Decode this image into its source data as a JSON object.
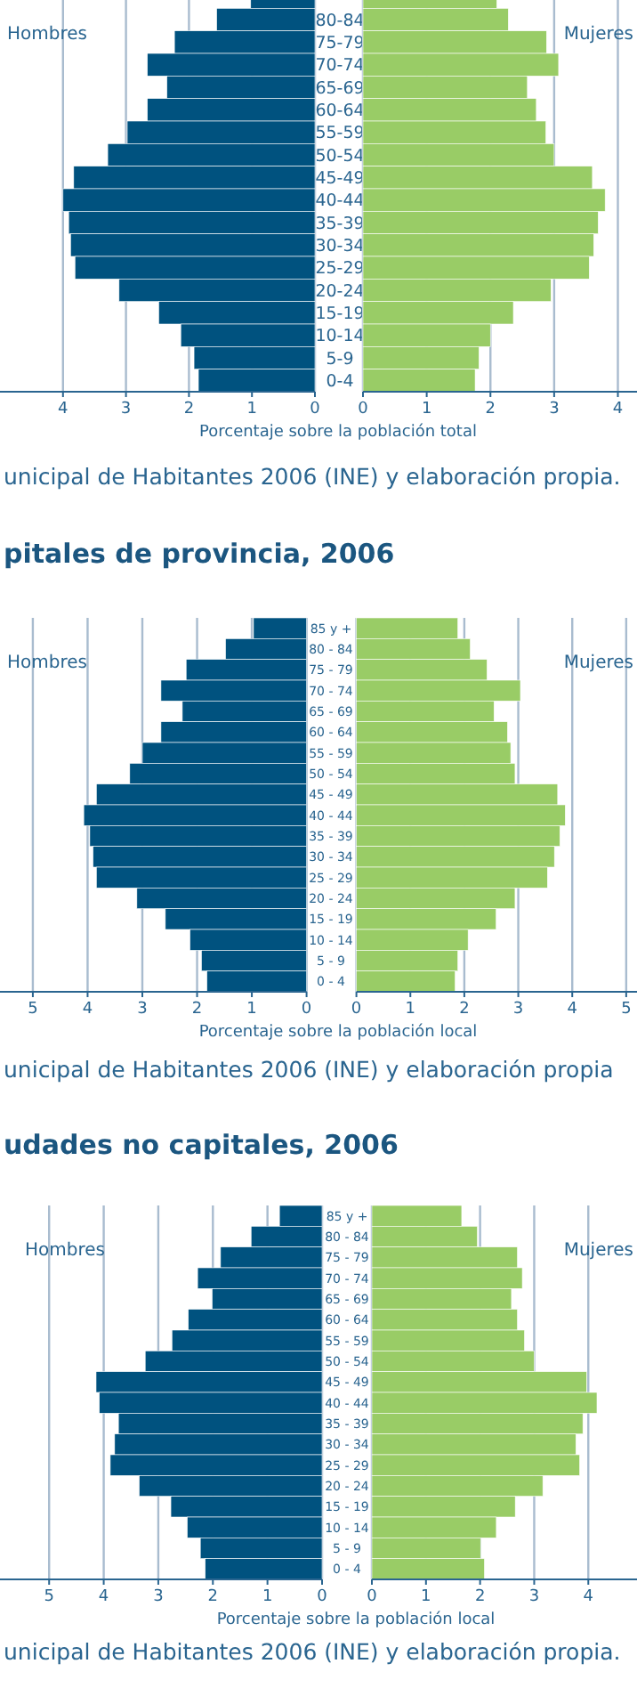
{
  "chart_data": [
    {
      "type": "bar",
      "orientation": "horizontal",
      "grid": "x",
      "xlabel": "Porcentaje sobre la población total",
      "categories": [
        null,
        "80-84",
        "75-79",
        "70-74",
        "65-69",
        "60-64",
        "55-59",
        "50-54",
        "45-49",
        "40-44",
        "35-39",
        "30-34",
        "25-29",
        "20-24",
        "15-19",
        "10-14",
        "5-9",
        "0-4"
      ],
      "xlim": [
        5,
        0
      ],
      "xticks": [
        4,
        3,
        2,
        1,
        0
      ],
      "series": [
        {
          "name": "Hombres",
          "color": "#00527f",
          "values": [
            1.02,
            1.56,
            2.23,
            2.66,
            2.35,
            2.66,
            2.98,
            3.29,
            3.83,
            4.0,
            3.91,
            3.88,
            3.81,
            3.11,
            2.48,
            2.13,
            1.92,
            1.85
          ]
        }
      ]
    },
    {
      "type": "bar",
      "orientation": "horizontal",
      "tick_labels": "x",
      "grid": "x",
      "annotations": [
        "unicipal de Habitantes 2006 (INE) y elaboración propia."
      ],
      "categories": [
        null,
        null,
        null,
        null,
        null,
        null,
        null,
        null,
        null,
        null,
        null,
        null,
        null,
        null,
        null,
        null,
        null,
        null
      ],
      "xlim": [
        0,
        4.3
      ],
      "xticks": [
        0,
        1,
        2,
        3,
        4
      ],
      "series": [
        {
          "name": "Mujeres",
          "color": "#99cc66",
          "values": [
            2.1,
            2.28,
            2.88,
            3.07,
            2.58,
            2.72,
            2.87,
            3.0,
            3.6,
            3.8,
            3.69,
            3.62,
            3.55,
            2.95,
            2.36,
            2.0,
            1.82,
            1.76
          ]
        }
      ]
    },
    {
      "type": "bar",
      "orientation": "horizontal",
      "grid": "x",
      "title": "pitales de provincia, 2006",
      "xlabel": "Porcentaje sobre la población local",
      "categories": [
        "85 y +",
        "80 - 84",
        "75 - 79",
        "70 - 74",
        "65 - 69",
        "60 - 64",
        "55 - 59",
        "50 - 54",
        "45 - 49",
        "40 - 44",
        "35 - 39",
        "30 - 34",
        "25 - 29",
        "20 - 24",
        "15 - 19",
        "10 - 14",
        "5 - 9",
        "0 - 4"
      ],
      "xlim": [
        5.6,
        0
      ],
      "xticks": [
        5,
        4,
        3,
        2,
        1,
        0
      ],
      "series": [
        {
          "name": "Hombres",
          "color": "#00527f",
          "values": [
            0.97,
            1.48,
            2.2,
            2.66,
            2.27,
            2.66,
            3.0,
            3.23,
            3.84,
            4.07,
            3.96,
            3.9,
            3.84,
            3.1,
            2.58,
            2.13,
            1.92,
            1.82
          ]
        }
      ]
    },
    {
      "type": "bar",
      "orientation": "horizontal",
      "tick_labels": "x",
      "grid": "x",
      "annotations": [
        "unicipal de Habitantes 2006 (INE) y elaboración propia"
      ],
      "categories": [
        null,
        null,
        null,
        null,
        null,
        null,
        null,
        null,
        null,
        null,
        null,
        null,
        null,
        null,
        null,
        null,
        null,
        null
      ],
      "xlim": [
        0,
        5.2
      ],
      "xticks": [
        0,
        1,
        2,
        3,
        4,
        5
      ],
      "series": [
        {
          "name": "Mujeres",
          "color": "#99cc66",
          "values": [
            1.88,
            2.11,
            2.42,
            3.04,
            2.55,
            2.8,
            2.86,
            2.94,
            3.73,
            3.87,
            3.77,
            3.67,
            3.54,
            2.94,
            2.59,
            2.07,
            1.88,
            1.83
          ]
        }
      ]
    },
    {
      "type": "bar",
      "orientation": "horizontal",
      "grid": "x",
      "title": "udades no capitales, 2006",
      "xlabel": "Porcentaje sobre la población local",
      "categories": [
        "85 y +",
        "80 - 84",
        "75 - 79",
        "70 - 74",
        "65 - 69",
        "60 - 64",
        "55 - 59",
        "50 - 54",
        "45 - 49",
        "40 - 44",
        "35 - 39",
        "30 - 34",
        "25 - 29",
        "20 - 24",
        "15 - 19",
        "10 - 14",
        "5 - 9",
        "0 - 4"
      ],
      "xlim": [
        5.9,
        0
      ],
      "xticks": [
        5,
        4,
        3,
        2,
        1,
        0
      ],
      "series": [
        {
          "name": "Hombres",
          "color": "#00527f",
          "values": [
            0.78,
            1.3,
            1.86,
            2.28,
            2.01,
            2.45,
            2.75,
            3.24,
            4.14,
            4.08,
            3.73,
            3.8,
            3.88,
            3.35,
            2.77,
            2.47,
            2.23,
            2.14
          ]
        }
      ]
    },
    {
      "type": "bar",
      "orientation": "horizontal",
      "tick_labels": "x",
      "grid": "x",
      "annotations": [
        "unicipal de Habitantes 2006 (INE) y elaboración propia."
      ],
      "categories": [
        null,
        null,
        null,
        null,
        null,
        null,
        null,
        null,
        null,
        null,
        null,
        null,
        null,
        null,
        null,
        null,
        null,
        null
      ],
      "xlim": [
        0,
        4.9
      ],
      "xticks": [
        0,
        1,
        2,
        3,
        4
      ],
      "series": [
        {
          "name": "Mujeres",
          "color": "#99cc66",
          "values": [
            1.66,
            1.95,
            2.69,
            2.78,
            2.58,
            2.69,
            2.82,
            3.0,
            3.97,
            4.16,
            3.9,
            3.77,
            3.84,
            3.16,
            2.65,
            2.3,
            2.01,
            2.08
          ]
        }
      ]
    }
  ]
}
